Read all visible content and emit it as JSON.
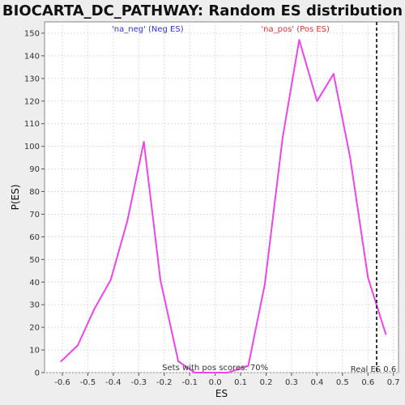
{
  "chart_data": {
    "type": "line",
    "title": "BIOCARTA_DC_PATHWAY: Random ES distribution",
    "xlabel": "ES",
    "ylabel": "P(ES)",
    "xlim": [
      -0.67,
      0.72
    ],
    "ylim": [
      0,
      155
    ],
    "x_ticks": [
      -0.6,
      -0.5,
      -0.4,
      -0.3,
      -0.2,
      -0.1,
      0.0,
      0.1,
      0.2,
      0.3,
      0.4,
      0.5,
      0.6,
      0.7
    ],
    "x_tick_labels": [
      "-0.6",
      "-0.5",
      "-0.4",
      "-0.3",
      "-0.2",
      "-0.1",
      "0.0",
      "0.1",
      "0.2",
      "0.3",
      "0.4",
      "0.5",
      "0.6",
      "0.7"
    ],
    "y_ticks": [
      0,
      10,
      20,
      30,
      40,
      50,
      60,
      70,
      80,
      90,
      100,
      110,
      120,
      130,
      140,
      150
    ],
    "y_tick_labels": [
      "0",
      "10",
      "20",
      "30",
      "40",
      "50",
      "60",
      "70",
      "80",
      "90",
      "100",
      "110",
      "120",
      "130",
      "140",
      "150"
    ],
    "grid": true,
    "series": [
      {
        "color": "#ee44ee",
        "x": [
          -0.605,
          -0.54,
          -0.475,
          -0.41,
          -0.345,
          -0.28,
          -0.215,
          -0.145,
          -0.08,
          -0.015,
          0.05,
          0.13,
          0.195,
          0.265,
          0.33,
          0.4,
          0.465,
          0.53,
          0.6,
          0.67
        ],
        "y": [
          5,
          12,
          28,
          41,
          67,
          102,
          41,
          5,
          0,
          0,
          0,
          3,
          39,
          104,
          147,
          120,
          132,
          95,
          42,
          17
        ]
      }
    ],
    "real_es": 0.634,
    "annotations": {
      "neg": {
        "text": "'na_neg' (Neg ES)",
        "color": "#3333cc"
      },
      "pos": {
        "text": "'na_pos' (Pos ES)",
        "color": "#dd3333"
      },
      "pos_scores": {
        "text": "Sets with pos scores: 70%",
        "color": "#333333"
      },
      "real_es": {
        "text": "Real ES 0.6",
        "color": "#333333"
      }
    }
  }
}
